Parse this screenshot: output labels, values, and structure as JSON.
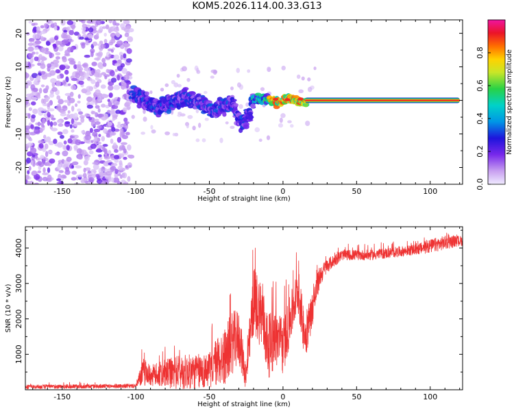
{
  "title": "KOM5.2026.114.00.33.G13",
  "chart_data": [
    {
      "type": "heatmap",
      "xlabel": "Height of straight line (km)",
      "ylabel": "Frequency (Hz)",
      "xlim": [
        -175,
        122
      ],
      "ylim": [
        -25,
        24
      ],
      "xticks": [
        -150,
        -100,
        -50,
        0,
        50,
        100
      ],
      "yticks": [
        -20,
        -10,
        0,
        10,
        20
      ],
      "colorbar": {
        "label": "Normalized spectral amplitude",
        "range": [
          0,
          1
        ],
        "ticks": [
          0.0,
          0.2,
          0.4,
          0.6,
          0.8
        ],
        "tick_labels": [
          "0.0",
          "0.2",
          "0.4",
          "0.6",
          "0.8"
        ]
      },
      "regions": [
        {
          "x_range": [
            -175,
            -103
          ],
          "freq_range": [
            -25,
            24
          ],
          "amplitude": [
            0.0,
            0.15
          ]
        },
        {
          "x_range": [
            -103,
            -20
          ],
          "freq_range": [
            -10,
            5
          ],
          "amplitude": [
            0.1,
            0.3
          ]
        },
        {
          "x_range": [
            -20,
            15
          ],
          "freq_range": [
            -2,
            3
          ],
          "amplitude": [
            0.2,
            0.95
          ]
        },
        {
          "x_range": [
            15,
            120
          ],
          "freq_range": [
            -0.5,
            0.5
          ],
          "amplitude": [
            0.95,
            1.0
          ]
        }
      ]
    },
    {
      "type": "line",
      "xlabel": "Height of straight line (km)",
      "ylabel": "SNR (10 * v/v)",
      "xlim": [
        -175,
        122
      ],
      "ylim": [
        0,
        4600
      ],
      "xticks": [
        -150,
        -100,
        -50,
        0,
        50,
        100
      ],
      "yticks": [
        1000,
        2000,
        3000,
        4000
      ],
      "color": "#ee3333",
      "x": [
        -175,
        -150,
        -120,
        -100,
        -95,
        -90,
        -80,
        -70,
        -60,
        -50,
        -45,
        -40,
        -35,
        -30,
        -25,
        -20,
        -15,
        -10,
        -5,
        0,
        5,
        10,
        15,
        20,
        25,
        30,
        40,
        50,
        60,
        70,
        80,
        90,
        100,
        110,
        120
      ],
      "y": [
        80,
        90,
        100,
        110,
        500,
        400,
        450,
        500,
        500,
        550,
        800,
        900,
        1300,
        1500,
        350,
        2500,
        2200,
        1200,
        1500,
        1200,
        2000,
        2800,
        1500,
        2300,
        3200,
        3500,
        3800,
        3800,
        3800,
        3850,
        3900,
        3950,
        4050,
        4150,
        4200
      ],
      "noise_amplitude": [
        60,
        60,
        60,
        60,
        400,
        300,
        400,
        500,
        500,
        500,
        700,
        800,
        900,
        800,
        400,
        1000,
        1000,
        900,
        900,
        800,
        700,
        600,
        700,
        500,
        300,
        200,
        150,
        150,
        150,
        150,
        150,
        150,
        200,
        200,
        150
      ]
    }
  ]
}
